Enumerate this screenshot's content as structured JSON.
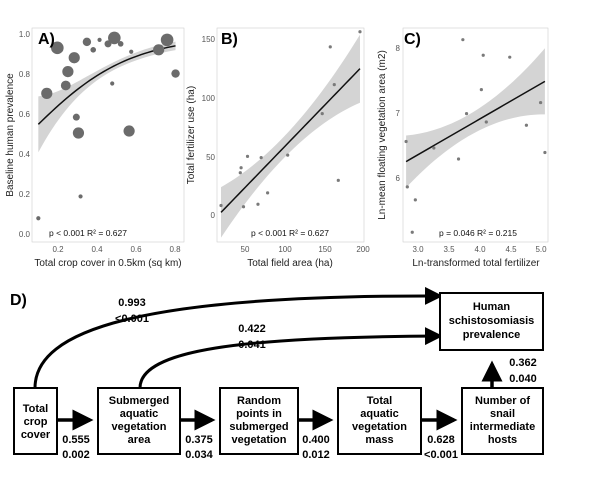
{
  "panels": [
    {
      "label": "A)",
      "xlabel": "Total crop cover in 0.5km (sq km)",
      "ylabel": "Baseline human prevalence",
      "stats": "p < 0.001 R² = 0.627",
      "xticks": [
        "0.2",
        "0.4",
        "0.6",
        "0.8"
      ],
      "yticks": [
        "0.0",
        "0.2",
        "0.4",
        "0.6",
        "0.8",
        "1.0"
      ]
    },
    {
      "label": "B)",
      "xlabel": "Total field area (ha)",
      "ylabel": "Total fertilizer use (ha)",
      "stats": "p < 0.001 R² = 0.627",
      "xticks": [
        "50",
        "100",
        "150",
        "200"
      ],
      "yticks": [
        "0",
        "50",
        "100",
        "150"
      ]
    },
    {
      "label": "C)",
      "xlabel": "Ln-transformed total fertilizer",
      "ylabel": "Ln-mean floating vegetation area (m2)",
      "stats": "p = 0.046 R² = 0.215",
      "xticks": [
        "3.0",
        "3.5",
        "4.0",
        "4.5",
        "5.0"
      ],
      "yticks": [
        "6",
        "7",
        "8"
      ]
    }
  ],
  "chart_data": [
    {
      "type": "scatter",
      "panel": "A)",
      "xlabel": "Total crop cover in 0.5km (sq km)",
      "ylabel": "Baseline human prevalence",
      "xlim": [
        0.1,
        0.82
      ],
      "ylim": [
        -0.04,
        1.04
      ],
      "points": [
        {
          "x": 0.13,
          "y": 0.08,
          "size": 1.5
        },
        {
          "x": 0.17,
          "y": 0.71,
          "size": 4
        },
        {
          "x": 0.22,
          "y": 0.94,
          "size": 4.5
        },
        {
          "x": 0.26,
          "y": 0.75,
          "size": 3.5
        },
        {
          "x": 0.27,
          "y": 0.82,
          "size": 4
        },
        {
          "x": 0.3,
          "y": 0.89,
          "size": 4
        },
        {
          "x": 0.31,
          "y": 0.59,
          "size": 2.5
        },
        {
          "x": 0.32,
          "y": 0.51,
          "size": 4
        },
        {
          "x": 0.33,
          "y": 0.19,
          "size": 1.5
        },
        {
          "x": 0.36,
          "y": 0.97,
          "size": 3
        },
        {
          "x": 0.39,
          "y": 0.93,
          "size": 2
        },
        {
          "x": 0.42,
          "y": 0.98,
          "size": 1.5
        },
        {
          "x": 0.46,
          "y": 0.96,
          "size": 2.5
        },
        {
          "x": 0.48,
          "y": 0.76,
          "size": 1.5
        },
        {
          "x": 0.49,
          "y": 0.99,
          "size": 4.5
        },
        {
          "x": 0.52,
          "y": 0.96,
          "size": 2
        },
        {
          "x": 0.56,
          "y": 0.52,
          "size": 4
        },
        {
          "x": 0.57,
          "y": 0.92,
          "size": 1.5
        },
        {
          "x": 0.7,
          "y": 0.93,
          "size": 4
        },
        {
          "x": 0.74,
          "y": 0.98,
          "size": 4.5
        },
        {
          "x": 0.78,
          "y": 0.81,
          "size": 3
        }
      ],
      "fit": {
        "kind": "logistic",
        "intercept": -0.33,
        "slope": 4.2
      },
      "p_value": "< 0.001",
      "r2": 0.627
    },
    {
      "type": "scatter",
      "panel": "B)",
      "xlabel": "Total field area (ha)",
      "ylabel": "Total fertilizer use (ha)",
      "xlim": [
        17,
        200
      ],
      "ylim": [
        -12,
        158
      ],
      "points": [
        {
          "x": 22,
          "y": 17
        },
        {
          "x": 46,
          "y": 43
        },
        {
          "x": 47,
          "y": 47
        },
        {
          "x": 50,
          "y": 16
        },
        {
          "x": 55,
          "y": 56
        },
        {
          "x": 68,
          "y": 18
        },
        {
          "x": 72,
          "y": 55
        },
        {
          "x": 80,
          "y": 27
        },
        {
          "x": 105,
          "y": 57
        },
        {
          "x": 148,
          "y": 90
        },
        {
          "x": 158,
          "y": 143
        },
        {
          "x": 163,
          "y": 113
        },
        {
          "x": 168,
          "y": 37
        },
        {
          "x": 195,
          "y": 155
        }
      ],
      "fit": {
        "kind": "linear",
        "intercept": -3.0,
        "slope": 0.66
      },
      "p_value": "< 0.001",
      "r2": 0.627
    },
    {
      "type": "scatter",
      "panel": "C)",
      "xlabel": "Ln-transformed total fertilizer",
      "ylabel": "Ln-mean floating vegetation area (m2)",
      "xlim": [
        2.75,
        5.1
      ],
      "ylim": [
        5.0,
        8.3
      ],
      "points": [
        {
          "x": 2.8,
          "y": 6.55
        },
        {
          "x": 2.82,
          "y": 5.85
        },
        {
          "x": 2.9,
          "y": 5.15
        },
        {
          "x": 2.95,
          "y": 5.65
        },
        {
          "x": 3.25,
          "y": 6.45
        },
        {
          "x": 3.65,
          "y": 6.28
        },
        {
          "x": 3.72,
          "y": 8.12
        },
        {
          "x": 3.78,
          "y": 6.98
        },
        {
          "x": 4.02,
          "y": 7.35
        },
        {
          "x": 4.05,
          "y": 7.88
        },
        {
          "x": 4.1,
          "y": 6.85
        },
        {
          "x": 4.48,
          "y": 7.85
        },
        {
          "x": 4.75,
          "y": 6.8
        },
        {
          "x": 4.98,
          "y": 7.15
        },
        {
          "x": 5.05,
          "y": 6.38
        }
      ],
      "fit": {
        "kind": "linear",
        "intercept": 4.7,
        "slope": 0.55
      },
      "p_value": "0.046",
      "r2": 0.215
    }
  ],
  "diagram": {
    "label": "D)",
    "nodes": {
      "crop": [
        "Total",
        "crop",
        "cover"
      ],
      "sav": [
        "Submerged",
        "aquatic",
        "vegetation",
        "area"
      ],
      "random": [
        "Random",
        "points in",
        "submerged",
        "vegetation"
      ],
      "mass": [
        "Total",
        "aquatic",
        "vegetation",
        "mass"
      ],
      "snail": [
        "Number of",
        "snail",
        "intermediate",
        "hosts"
      ],
      "human": [
        "Human",
        "schistosomiasis",
        "prevalence"
      ]
    },
    "paths": {
      "crop_human": {
        "coef": "0.993",
        "p": "<0.001"
      },
      "sav_human": {
        "coef": "0.422",
        "p": "0.041"
      },
      "crop_sav": {
        "coef": "0.555",
        "p": "0.002"
      },
      "sav_random": {
        "coef": "0.375",
        "p": "0.034"
      },
      "random_mass": {
        "coef": "0.400",
        "p": "0.012"
      },
      "mass_snail": {
        "coef": "0.628",
        "p": "<0.001"
      },
      "snail_human": {
        "coef": "0.362",
        "p": "0.040"
      }
    }
  }
}
